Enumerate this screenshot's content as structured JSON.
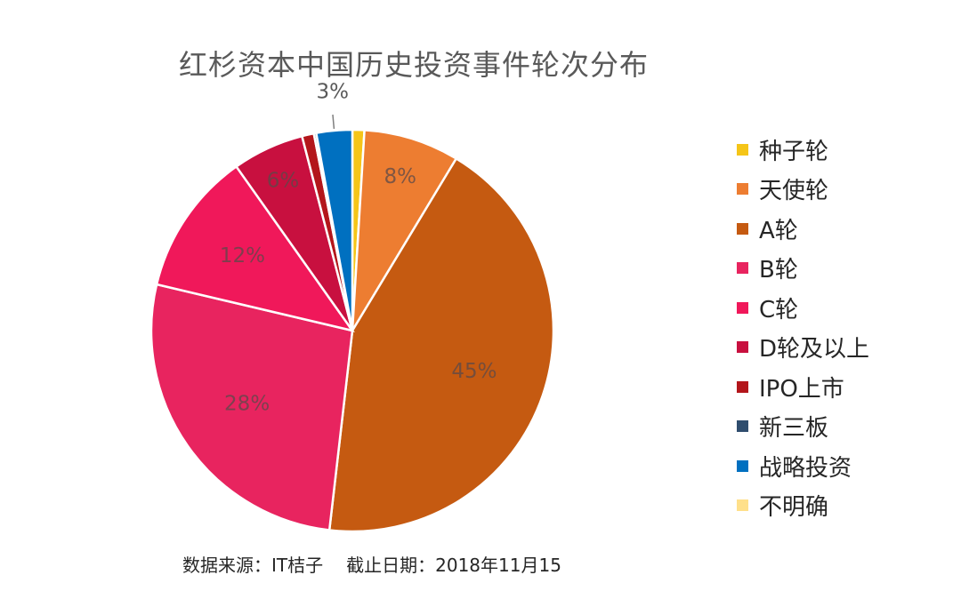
{
  "chart_data": {
    "type": "pie",
    "title": "红杉资本中国历史投资事件轮次分布",
    "categories": [
      "种子轮",
      "天使轮",
      "A轮",
      "B轮",
      "C轮",
      "D轮及以上",
      "IPO上市",
      "新三板",
      "战略投资",
      "不明确"
    ],
    "values": [
      1,
      8,
      45,
      28,
      12,
      6,
      1,
      0.2,
      3,
      0
    ],
    "colors": [
      "#F5C518",
      "#ED7D31",
      "#C55A11",
      "#E8245F",
      "#F0185A",
      "#C8103F",
      "#B3161B",
      "#2F4D6E",
      "#0070C0",
      "#FFE08A"
    ],
    "data_labels": [
      "",
      "8%",
      "45%",
      "28%",
      "12%",
      "6%",
      "",
      "",
      "3%",
      ""
    ],
    "legend_position": "right"
  },
  "footnote": {
    "source": "数据来源：IT桔子",
    "date": "截止日期：2018年11月15"
  }
}
